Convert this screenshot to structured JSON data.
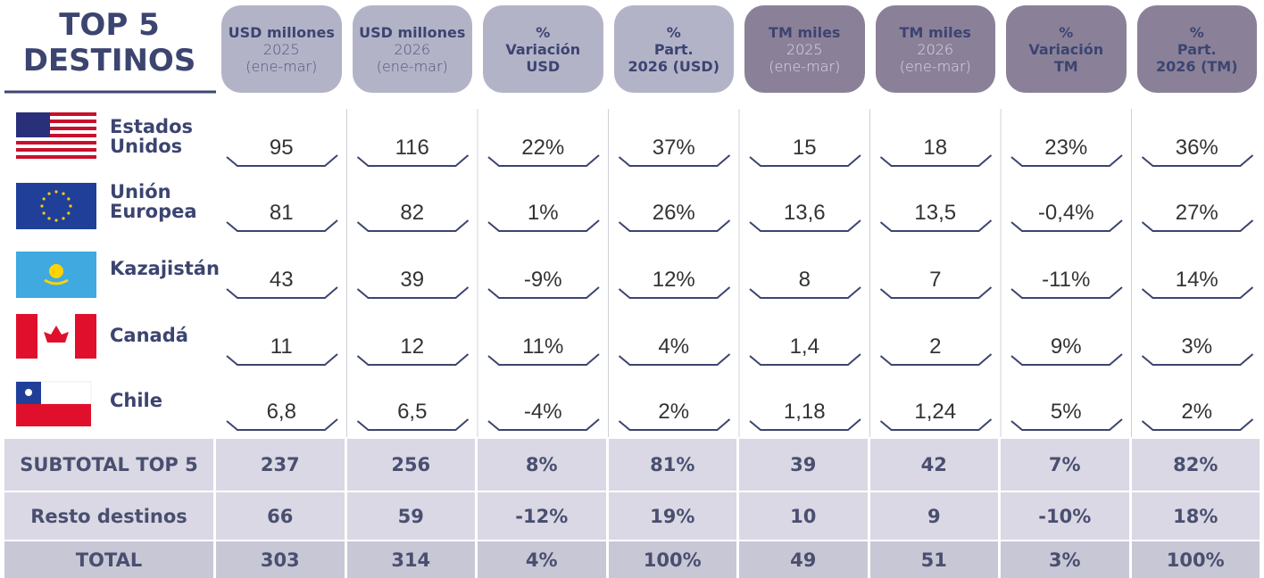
{
  "header": {
    "title": "TOP 5 DESTINOS"
  },
  "table": {
    "columns": [
      {
        "bold": [
          "USD millones"
        ],
        "light": [
          "2025",
          "(ene-mar)"
        ]
      },
      {
        "bold": [
          "USD millones"
        ],
        "light": [
          "2026",
          "(ene-mar)"
        ]
      },
      {
        "bold": [
          "%",
          "Variación",
          "USD"
        ]
      },
      {
        "bold": [
          "%",
          "Part.",
          "2026 (USD)"
        ]
      },
      {
        "bold": [
          "TM miles"
        ],
        "light": [
          "2025",
          "(ene-mar)"
        ]
      },
      {
        "bold": [
          "TM miles"
        ],
        "light": [
          "2026",
          "(ene-mar)"
        ]
      },
      {
        "bold": [
          "%",
          "Variación",
          "TM"
        ]
      },
      {
        "bold": [
          "%",
          "Part.",
          "2026 (TM)"
        ]
      }
    ],
    "rows": [
      {
        "name": "Estados Unidos",
        "cells": [
          "95",
          "116",
          "22%",
          "37%",
          "15",
          "18",
          "23%",
          "36%"
        ]
      },
      {
        "name": "Unión Europea",
        "cells": [
          "81",
          "82",
          "1%",
          "26%",
          "13,6",
          "13,5",
          "-0,4%",
          "27%"
        ]
      },
      {
        "name": "Kazajistán",
        "cells": [
          "43",
          "39",
          "-9%",
          "12%",
          "8",
          "7",
          "-11%",
          "14%"
        ]
      },
      {
        "name": "Canadá",
        "cells": [
          "11",
          "12",
          "11%",
          "4%",
          "1,4",
          "2",
          "9%",
          "3%"
        ]
      },
      {
        "name": "Chile",
        "cells": [
          "6,8",
          "6,5",
          "-4%",
          "2%",
          "1,18",
          "1,24",
          "5%",
          "2%"
        ]
      }
    ],
    "summary": [
      {
        "name": "SUBTOTAL TOP 5",
        "cells": [
          "237",
          "256",
          "8%",
          "81%",
          "39",
          "42",
          "7%",
          "82%"
        ]
      },
      {
        "name": "Resto destinos",
        "cells": [
          "66",
          "59",
          "-12%",
          "19%",
          "10",
          "9",
          "-10%",
          "18%"
        ]
      },
      {
        "name": "TOTAL",
        "cells": [
          "303",
          "314",
          "4%",
          "100%",
          "49",
          "51",
          "3%",
          "100%"
        ]
      }
    ]
  }
}
